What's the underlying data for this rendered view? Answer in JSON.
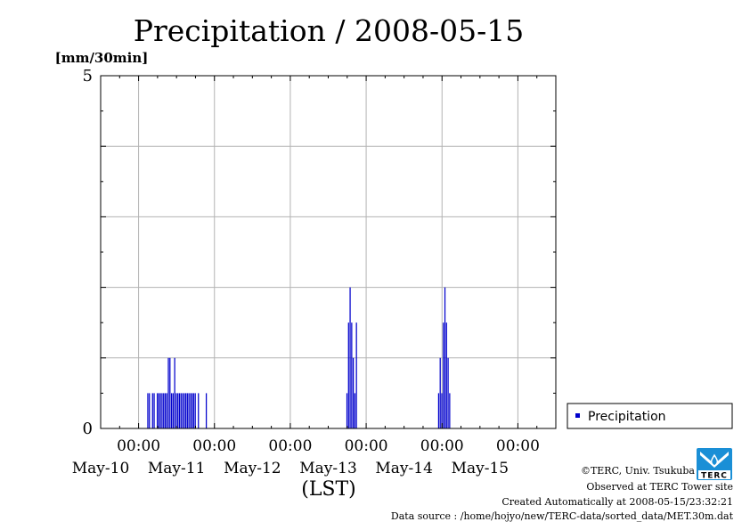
{
  "chart_data": {
    "type": "bar",
    "title": "Precipitation / 2008-05-15",
    "ylabel": "[mm/30min]",
    "xlabel": "(LST)",
    "ylim": [
      0,
      5
    ],
    "xlim_hours": [
      0,
      144
    ],
    "y_ticks": [
      {
        "value": 0,
        "label": "0"
      },
      {
        "value": 5,
        "label": "5"
      }
    ],
    "y_grid": [
      1,
      2,
      3,
      4
    ],
    "x_ticks": [
      {
        "hour": 12,
        "time": "00:00",
        "date": "May-10"
      },
      {
        "hour": 36,
        "time": "00:00",
        "date": "May-11"
      },
      {
        "hour": 60,
        "time": "00:00",
        "date": "May-12"
      },
      {
        "hour": 84,
        "time": "00:00",
        "date": "May-13"
      },
      {
        "hour": 108,
        "time": "00:00",
        "date": "May-14"
      },
      {
        "hour": 132,
        "time": "00:00",
        "date": "May-15"
      }
    ],
    "grid": true,
    "legend_position": "bottom-right",
    "series": [
      {
        "name": "Precipitation",
        "color": "#0000cc",
        "points": [
          [
            15.0,
            0.5
          ],
          [
            15.5,
            0.5
          ],
          [
            16.5,
            0.5
          ],
          [
            17.0,
            0.5
          ],
          [
            18.0,
            0.5
          ],
          [
            18.5,
            0.5
          ],
          [
            19.0,
            0.5
          ],
          [
            19.5,
            0.5
          ],
          [
            20.0,
            0.5
          ],
          [
            20.5,
            0.5
          ],
          [
            21.0,
            0.5
          ],
          [
            21.5,
            1.0
          ],
          [
            22.0,
            1.0
          ],
          [
            22.5,
            0.5
          ],
          [
            23.0,
            0.5
          ],
          [
            23.5,
            1.0
          ],
          [
            24.0,
            0.5
          ],
          [
            24.5,
            0.5
          ],
          [
            25.0,
            0.5
          ],
          [
            25.5,
            0.5
          ],
          [
            26.0,
            0.5
          ],
          [
            26.5,
            0.5
          ],
          [
            27.0,
            0.5
          ],
          [
            27.5,
            0.5
          ],
          [
            28.0,
            0.5
          ],
          [
            28.5,
            0.5
          ],
          [
            29.0,
            0.5
          ],
          [
            29.5,
            0.5
          ],
          [
            30.0,
            0.5
          ],
          [
            31.0,
            0.5
          ],
          [
            33.5,
            0.5
          ],
          [
            78.0,
            0.5
          ],
          [
            78.5,
            1.5
          ],
          [
            79.0,
            2.0
          ],
          [
            79.5,
            1.5
          ],
          [
            80.0,
            1.0
          ],
          [
            80.5,
            0.5
          ],
          [
            81.0,
            1.5
          ],
          [
            107.0,
            0.5
          ],
          [
            107.5,
            1.0
          ],
          [
            108.0,
            0.5
          ],
          [
            108.5,
            1.5
          ],
          [
            109.0,
            2.0
          ],
          [
            109.5,
            1.5
          ],
          [
            110.0,
            1.0
          ],
          [
            110.5,
            0.5
          ]
        ]
      }
    ]
  },
  "footer": {
    "copyright": "©TERC, Univ. Tsukuba",
    "observed": "Observed at TERC Tower site",
    "created": "Created Automatically at 2008-05-15/23:32:21",
    "source": "Data source : /home/hojyo/new/TERC-data/sorted_data/MET.30m.dat"
  },
  "logo": {
    "text": "TERC",
    "color": "#1a8fd6"
  }
}
